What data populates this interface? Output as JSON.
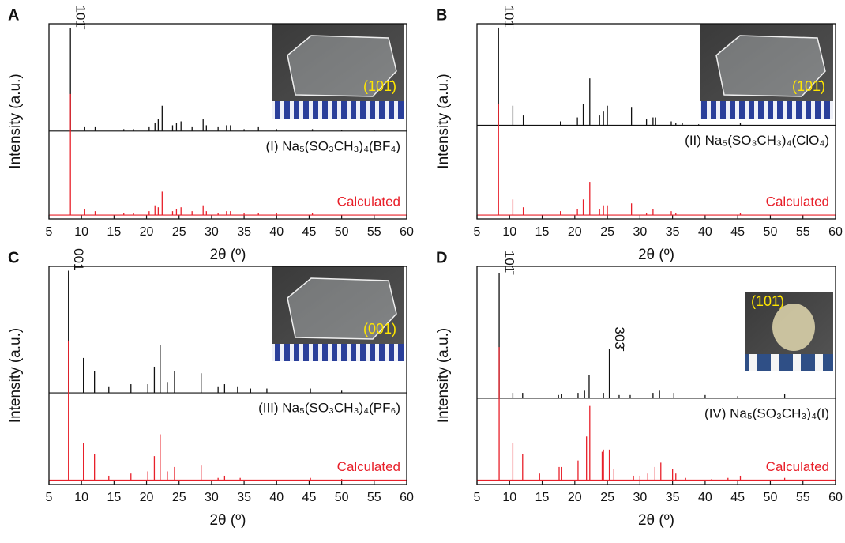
{
  "chart_data": [
    {
      "type": "line",
      "panel": "A",
      "ylabel": "Intensity (a.u.)",
      "xlabel": "2θ (º)",
      "xlim": [
        5,
        60
      ],
      "xticks": [
        5,
        10,
        15,
        20,
        25,
        30,
        35,
        40,
        45,
        50,
        55,
        60
      ],
      "ylim": [
        0,
        100
      ],
      "inset_label": "(101̄)",
      "annotations": [
        {
          "text": "101̄",
          "x": 8.3
        }
      ],
      "series": [
        {
          "name": "(I) Na₅(SO₃CH₃)₄(BF₄)",
          "color": "#111111",
          "baseline": 45,
          "x": [
            8.3,
            10.5,
            12.1,
            16.5,
            18,
            20.4,
            21.3,
            21.8,
            22.4,
            24,
            24.6,
            25.3,
            27,
            28.7,
            29.2,
            31,
            32.3,
            32.9,
            35,
            37.2,
            40,
            45.5,
            50,
            55
          ],
          "values": [
            98,
            47,
            47,
            46,
            46,
            47,
            49,
            51,
            58,
            48,
            49,
            50,
            47,
            51,
            48,
            47,
            48,
            48,
            46,
            47,
            46,
            46,
            45.5,
            45.5
          ]
        },
        {
          "name": "Calculated",
          "color": "#e8202a",
          "baseline": 2,
          "x": [
            8.3,
            10.5,
            12.1,
            16.5,
            18,
            20.4,
            21.3,
            21.8,
            22.4,
            24,
            24.6,
            25.3,
            27,
            28.7,
            29.2,
            31,
            32.3,
            32.9,
            35,
            37.2,
            40,
            45.5
          ],
          "values": [
            64,
            5,
            4,
            3,
            3,
            4,
            7,
            6,
            14,
            4,
            5,
            6,
            4,
            7,
            4,
            3,
            4,
            4,
            3,
            3,
            3,
            3
          ]
        }
      ]
    },
    {
      "type": "line",
      "panel": "B",
      "ylabel": "Intensity (a.u.)",
      "xlabel": "2θ (º)",
      "xlim": [
        5,
        60
      ],
      "xticks": [
        5,
        10,
        15,
        20,
        25,
        30,
        35,
        40,
        45,
        50,
        55,
        60
      ],
      "ylim": [
        0,
        100
      ],
      "inset_label": "(101̄)",
      "annotations": [
        {
          "text": "101̄",
          "x": 8.3
        }
      ],
      "series": [
        {
          "name": "(II) Na₅(SO₃CH₃)₄(ClO₄)",
          "color": "#111111",
          "baseline": 48,
          "x": [
            8.3,
            10.5,
            12.1,
            17.8,
            20.4,
            21.3,
            22.3,
            23.8,
            24.4,
            25,
            28.7,
            31,
            32,
            32.4,
            34.8,
            35.5,
            36.5,
            39,
            45.4
          ],
          "values": [
            98,
            58,
            53,
            50,
            52,
            59,
            72,
            53,
            55,
            58,
            57,
            51,
            52,
            52,
            50,
            49,
            49,
            48.5,
            49
          ]
        },
        {
          "name": "Calculated",
          "color": "#e8202a",
          "baseline": 2,
          "x": [
            8.3,
            10.5,
            12.1,
            17.8,
            20.4,
            21.3,
            22.3,
            23.8,
            24.4,
            25,
            28.7,
            31,
            32,
            34.8,
            35.5,
            45.4
          ],
          "values": [
            59,
            10,
            6,
            4,
            5,
            10,
            19,
            5,
            7,
            7,
            8,
            3,
            5,
            4,
            3,
            3
          ]
        }
      ]
    },
    {
      "type": "line",
      "panel": "C",
      "ylabel": "Intensity (a.u.)",
      "xlabel": "2θ (º)",
      "xlim": [
        5,
        60
      ],
      "xticks": [
        5,
        10,
        15,
        20,
        25,
        30,
        35,
        40,
        45,
        50,
        55,
        60
      ],
      "ylim": [
        0,
        100
      ],
      "inset_label": "(001)",
      "annotations": [
        {
          "text": "001",
          "x": 8
        }
      ],
      "series": [
        {
          "name": "(III) Na₅(SO₃CH₃)₄(PF₆)",
          "color": "#111111",
          "baseline": 42,
          "x": [
            8,
            10.3,
            12,
            14.2,
            17.6,
            20.2,
            21.2,
            22.1,
            23.2,
            24.3,
            28.4,
            31,
            32,
            34,
            36,
            38.5,
            45.2,
            50
          ],
          "values": [
            98,
            58,
            52,
            45,
            46,
            46,
            54,
            64,
            47,
            52,
            51,
            45,
            46,
            45,
            44,
            44,
            44,
            43
          ]
        },
        {
          "name": "Calculated",
          "color": "#e8202a",
          "baseline": 2,
          "x": [
            8,
            10.3,
            12,
            14.2,
            17.6,
            20.2,
            21.2,
            22.1,
            23.2,
            24.3,
            28.4,
            31,
            32,
            34.4,
            45.2,
            50
          ],
          "values": [
            66,
            19,
            14,
            4,
            5,
            6,
            13,
            23,
            6,
            8,
            9,
            3,
            4,
            3,
            3,
            2.5
          ]
        }
      ]
    },
    {
      "type": "line",
      "panel": "D",
      "ylabel": "Intensity (a.u.)",
      "xlabel": "2θ (º)",
      "xlim": [
        5,
        60
      ],
      "xticks": [
        5,
        10,
        15,
        20,
        25,
        30,
        35,
        40,
        45,
        50,
        55,
        60
      ],
      "ylim": [
        0,
        100
      ],
      "inset_label": "(101̄)",
      "annotations": [
        {
          "text": "101̄",
          "x": 8.4
        },
        {
          "text": "303̄",
          "x": 25.3
        }
      ],
      "series": [
        {
          "name": "(IV) Na₅(SO₃CH₃)₄(I)",
          "color": "#111111",
          "baseline": 39.5,
          "x": [
            8.4,
            10.5,
            12,
            17.5,
            18,
            20.5,
            21.5,
            22.2,
            24.4,
            25.3,
            26.8,
            28.5,
            32,
            33,
            35.2,
            40,
            45,
            52.2
          ],
          "values": [
            97,
            42,
            42,
            41,
            41.5,
            42,
            43,
            50,
            42,
            62,
            41,
            41,
            42,
            43,
            42,
            41,
            40.5,
            41.5
          ]
        },
        {
          "name": "Calculated",
          "color": "#e8202a",
          "baseline": 2,
          "x": [
            8.4,
            10.5,
            12,
            14.6,
            17.6,
            18,
            20.5,
            21.8,
            22.3,
            24.2,
            24.4,
            25.3,
            26,
            29,
            30,
            31.2,
            32.3,
            33.2,
            35,
            35.5,
            37,
            41,
            43.5,
            45.4,
            52.2
          ],
          "values": [
            63,
            19,
            14,
            5,
            8,
            8,
            11,
            22,
            36,
            15,
            16,
            16,
            7,
            4,
            4,
            5,
            8,
            10,
            7,
            5,
            3,
            2.5,
            3,
            4,
            3
          ]
        }
      ]
    }
  ]
}
